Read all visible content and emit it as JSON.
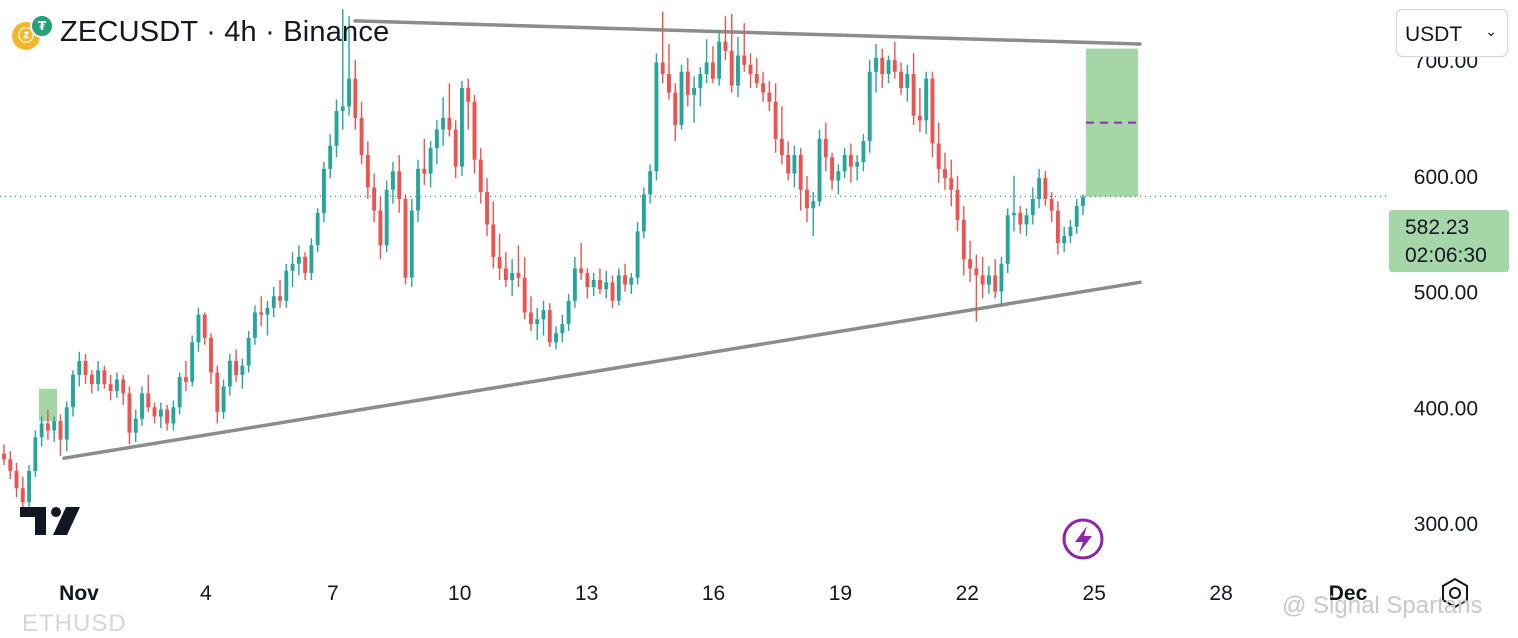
{
  "header": {
    "symbol_title": "ZECUSDT · 4h · Binance",
    "coin_glyph": "ⓩ",
    "quote_glyph": "₮"
  },
  "currency_selector": {
    "value": "USDT",
    "chevron": "⌄"
  },
  "price_tag": {
    "price": "582.23",
    "countdown": "02:06:30"
  },
  "watermark": "@ Signal Spartans",
  "ethusd_partial": "ETHUSD",
  "colors": {
    "up": "#26a69a",
    "down": "#ef5350",
    "trendline": "#8c8c8c",
    "box": "#a5d6a7",
    "target_dash": "#9c27b0",
    "lightning": "#8e24aa"
  },
  "icons": [
    "tradingview-logo",
    "lightning-icon",
    "settings-icon"
  ],
  "chart_data": {
    "type": "candlestick",
    "y_tick_labels": [
      "700.00",
      "600.00",
      "500.00",
      "400.00",
      "300.00"
    ],
    "y_ticks": [
      700,
      600,
      500,
      400,
      300
    ],
    "ylim": [
      268,
      752
    ],
    "x_tick_labels": [
      "Nov",
      "4",
      "7",
      "10",
      "13",
      "16",
      "19",
      "22",
      "25",
      "28",
      "Dec"
    ],
    "last_price": 582.23,
    "trendlines": [
      {
        "name": "upper",
        "from": {
          "date": "Nov 8",
          "price": 734
        },
        "to": {
          "date": "Nov 26",
          "price": 714
        }
      },
      {
        "name": "lower",
        "from": {
          "date": "Nov 1",
          "price": 356
        },
        "to": {
          "date": "Nov 26",
          "price": 508
        }
      }
    ],
    "target_box": {
      "from_price": 582,
      "to_price": 710,
      "mid_price": 646
    },
    "small_box": {
      "from_price": 388,
      "to_price": 416
    },
    "ohlc": [
      [
        360,
        368,
        350,
        355
      ],
      [
        355,
        362,
        338,
        345
      ],
      [
        345,
        352,
        322,
        330
      ],
      [
        330,
        340,
        312,
        318
      ],
      [
        318,
        350,
        312,
        345
      ],
      [
        345,
        380,
        340,
        374
      ],
      [
        374,
        392,
        366,
        386
      ],
      [
        386,
        398,
        372,
        380
      ],
      [
        380,
        392,
        370,
        388
      ],
      [
        388,
        394,
        358,
        372
      ],
      [
        372,
        405,
        362,
        400
      ],
      [
        400,
        432,
        392,
        428
      ],
      [
        428,
        448,
        418,
        440
      ],
      [
        440,
        446,
        420,
        428
      ],
      [
        428,
        432,
        412,
        420
      ],
      [
        420,
        440,
        414,
        432
      ],
      [
        432,
        436,
        416,
        420
      ],
      [
        420,
        428,
        406,
        414
      ],
      [
        414,
        430,
        408,
        424
      ],
      [
        424,
        428,
        402,
        412
      ],
      [
        412,
        418,
        368,
        378
      ],
      [
        378,
        398,
        370,
        390
      ],
      [
        390,
        418,
        384,
        412
      ],
      [
        412,
        428,
        396,
        400
      ],
      [
        400,
        404,
        386,
        392
      ],
      [
        392,
        404,
        382,
        398
      ],
      [
        398,
        402,
        380,
        386
      ],
      [
        386,
        406,
        380,
        400
      ],
      [
        400,
        430,
        394,
        426
      ],
      [
        426,
        440,
        414,
        422
      ],
      [
        422,
        462,
        418,
        456
      ],
      [
        456,
        486,
        448,
        480
      ],
      [
        480,
        482,
        454,
        460
      ],
      [
        460,
        464,
        420,
        430
      ],
      [
        430,
        436,
        386,
        396
      ],
      [
        396,
        424,
        390,
        418
      ],
      [
        418,
        446,
        410,
        440
      ],
      [
        440,
        450,
        422,
        428
      ],
      [
        428,
        442,
        416,
        436
      ],
      [
        436,
        466,
        430,
        460
      ],
      [
        460,
        488,
        454,
        482
      ],
      [
        482,
        496,
        470,
        480
      ],
      [
        480,
        492,
        462,
        486
      ],
      [
        486,
        504,
        478,
        496
      ],
      [
        496,
        510,
        486,
        492
      ],
      [
        492,
        524,
        486,
        518
      ],
      [
        518,
        534,
        504,
        524
      ],
      [
        524,
        540,
        514,
        530
      ],
      [
        530,
        534,
        510,
        516
      ],
      [
        516,
        546,
        510,
        540
      ],
      [
        540,
        572,
        534,
        568
      ],
      [
        568,
        612,
        560,
        606
      ],
      [
        606,
        636,
        598,
        626
      ],
      [
        626,
        666,
        616,
        656
      ],
      [
        656,
        744,
        640,
        660
      ],
      [
        660,
        738,
        652,
        684
      ],
      [
        684,
        700,
        640,
        650
      ],
      [
        650,
        664,
        610,
        618
      ],
      [
        618,
        630,
        580,
        590
      ],
      [
        590,
        602,
        560,
        570
      ],
      [
        570,
        582,
        528,
        540
      ],
      [
        540,
        596,
        534,
        588
      ],
      [
        588,
        612,
        576,
        604
      ],
      [
        604,
        618,
        568,
        580
      ],
      [
        580,
        584,
        506,
        512
      ],
      [
        512,
        580,
        504,
        570
      ],
      [
        570,
        614,
        560,
        606
      ],
      [
        606,
        632,
        592,
        602
      ],
      [
        602,
        630,
        590,
        624
      ],
      [
        624,
        648,
        610,
        640
      ],
      [
        640,
        668,
        626,
        650
      ],
      [
        650,
        680,
        634,
        640
      ],
      [
        640,
        648,
        598,
        608
      ],
      [
        608,
        682,
        600,
        676
      ],
      [
        676,
        684,
        640,
        664
      ],
      [
        664,
        670,
        602,
        614
      ],
      [
        614,
        624,
        576,
        586
      ],
      [
        586,
        598,
        548,
        558
      ],
      [
        558,
        578,
        520,
        530
      ],
      [
        530,
        550,
        510,
        520
      ],
      [
        520,
        534,
        504,
        510
      ],
      [
        510,
        528,
        496,
        516
      ],
      [
        516,
        540,
        504,
        512
      ],
      [
        512,
        530,
        476,
        482
      ],
      [
        482,
        496,
        466,
        472
      ],
      [
        472,
        486,
        458,
        476
      ],
      [
        476,
        492,
        462,
        484
      ],
      [
        484,
        490,
        452,
        456
      ],
      [
        456,
        470,
        450,
        464
      ],
      [
        464,
        480,
        456,
        472
      ],
      [
        472,
        498,
        466,
        492
      ],
      [
        492,
        530,
        486,
        520
      ],
      [
        520,
        542,
        510,
        516
      ],
      [
        516,
        520,
        494,
        504
      ],
      [
        504,
        516,
        496,
        510
      ],
      [
        510,
        520,
        498,
        502
      ],
      [
        502,
        518,
        494,
        508
      ],
      [
        508,
        514,
        486,
        492
      ],
      [
        492,
        520,
        488,
        514
      ],
      [
        514,
        524,
        500,
        506
      ],
      [
        506,
        516,
        498,
        512
      ],
      [
        512,
        560,
        506,
        552
      ],
      [
        552,
        590,
        546,
        584
      ],
      [
        584,
        610,
        576,
        604
      ],
      [
        604,
        706,
        596,
        698
      ],
      [
        698,
        742,
        680,
        688
      ],
      [
        688,
        714,
        666,
        672
      ],
      [
        672,
        680,
        630,
        644
      ],
      [
        644,
        696,
        640,
        690
      ],
      [
        690,
        702,
        660,
        670
      ],
      [
        670,
        686,
        646,
        676
      ],
      [
        676,
        694,
        660,
        688
      ],
      [
        688,
        718,
        680,
        698
      ],
      [
        698,
        712,
        680,
        684
      ],
      [
        684,
        726,
        678,
        716
      ],
      [
        716,
        738,
        700,
        708
      ],
      [
        708,
        740,
        672,
        678
      ],
      [
        678,
        720,
        668,
        704
      ],
      [
        704,
        732,
        690,
        696
      ],
      [
        696,
        706,
        676,
        688
      ],
      [
        688,
        702,
        676,
        680
      ],
      [
        680,
        690,
        664,
        672
      ],
      [
        672,
        682,
        656,
        664
      ],
      [
        664,
        680,
        620,
        632
      ],
      [
        632,
        660,
        610,
        618
      ],
      [
        618,
        630,
        596,
        602
      ],
      [
        602,
        626,
        590,
        618
      ],
      [
        618,
        624,
        570,
        588
      ],
      [
        588,
        600,
        560,
        572
      ],
      [
        572,
        586,
        548,
        578
      ],
      [
        578,
        640,
        574,
        632
      ],
      [
        632,
        646,
        604,
        616
      ],
      [
        616,
        620,
        588,
        596
      ],
      [
        596,
        610,
        584,
        604
      ],
      [
        604,
        624,
        598,
        618
      ],
      [
        618,
        628,
        594,
        608
      ],
      [
        608,
        618,
        596,
        612
      ],
      [
        612,
        636,
        604,
        630
      ],
      [
        630,
        700,
        620,
        690
      ],
      [
        690,
        714,
        672,
        702
      ],
      [
        702,
        710,
        676,
        688
      ],
      [
        688,
        704,
        680,
        700
      ],
      [
        700,
        716,
        684,
        690
      ],
      [
        690,
        698,
        670,
        676
      ],
      [
        676,
        696,
        664,
        688
      ],
      [
        688,
        706,
        644,
        652
      ],
      [
        652,
        676,
        638,
        648
      ],
      [
        648,
        690,
        636,
        684
      ],
      [
        684,
        690,
        616,
        628
      ],
      [
        628,
        646,
        594,
        606
      ],
      [
        606,
        620,
        588,
        598
      ],
      [
        598,
        614,
        574,
        588
      ],
      [
        588,
        600,
        552,
        562
      ],
      [
        562,
        574,
        514,
        528
      ],
      [
        528,
        544,
        508,
        520
      ],
      [
        520,
        532,
        474,
        514
      ],
      [
        514,
        530,
        494,
        506
      ],
      [
        506,
        522,
        498,
        514
      ],
      [
        514,
        528,
        494,
        500
      ],
      [
        500,
        530,
        488,
        524
      ],
      [
        524,
        572,
        516,
        566
      ],
      [
        566,
        600,
        552,
        568
      ],
      [
        568,
        574,
        550,
        558
      ],
      [
        558,
        572,
        548,
        566
      ],
      [
        566,
        590,
        558,
        580
      ],
      [
        580,
        606,
        572,
        598
      ],
      [
        598,
        604,
        574,
        580
      ],
      [
        580,
        586,
        560,
        570
      ],
      [
        570,
        578,
        532,
        542
      ],
      [
        542,
        556,
        534,
        548
      ],
      [
        548,
        562,
        542,
        556
      ],
      [
        556,
        580,
        550,
        574
      ],
      [
        574,
        584,
        566,
        582
      ]
    ]
  }
}
